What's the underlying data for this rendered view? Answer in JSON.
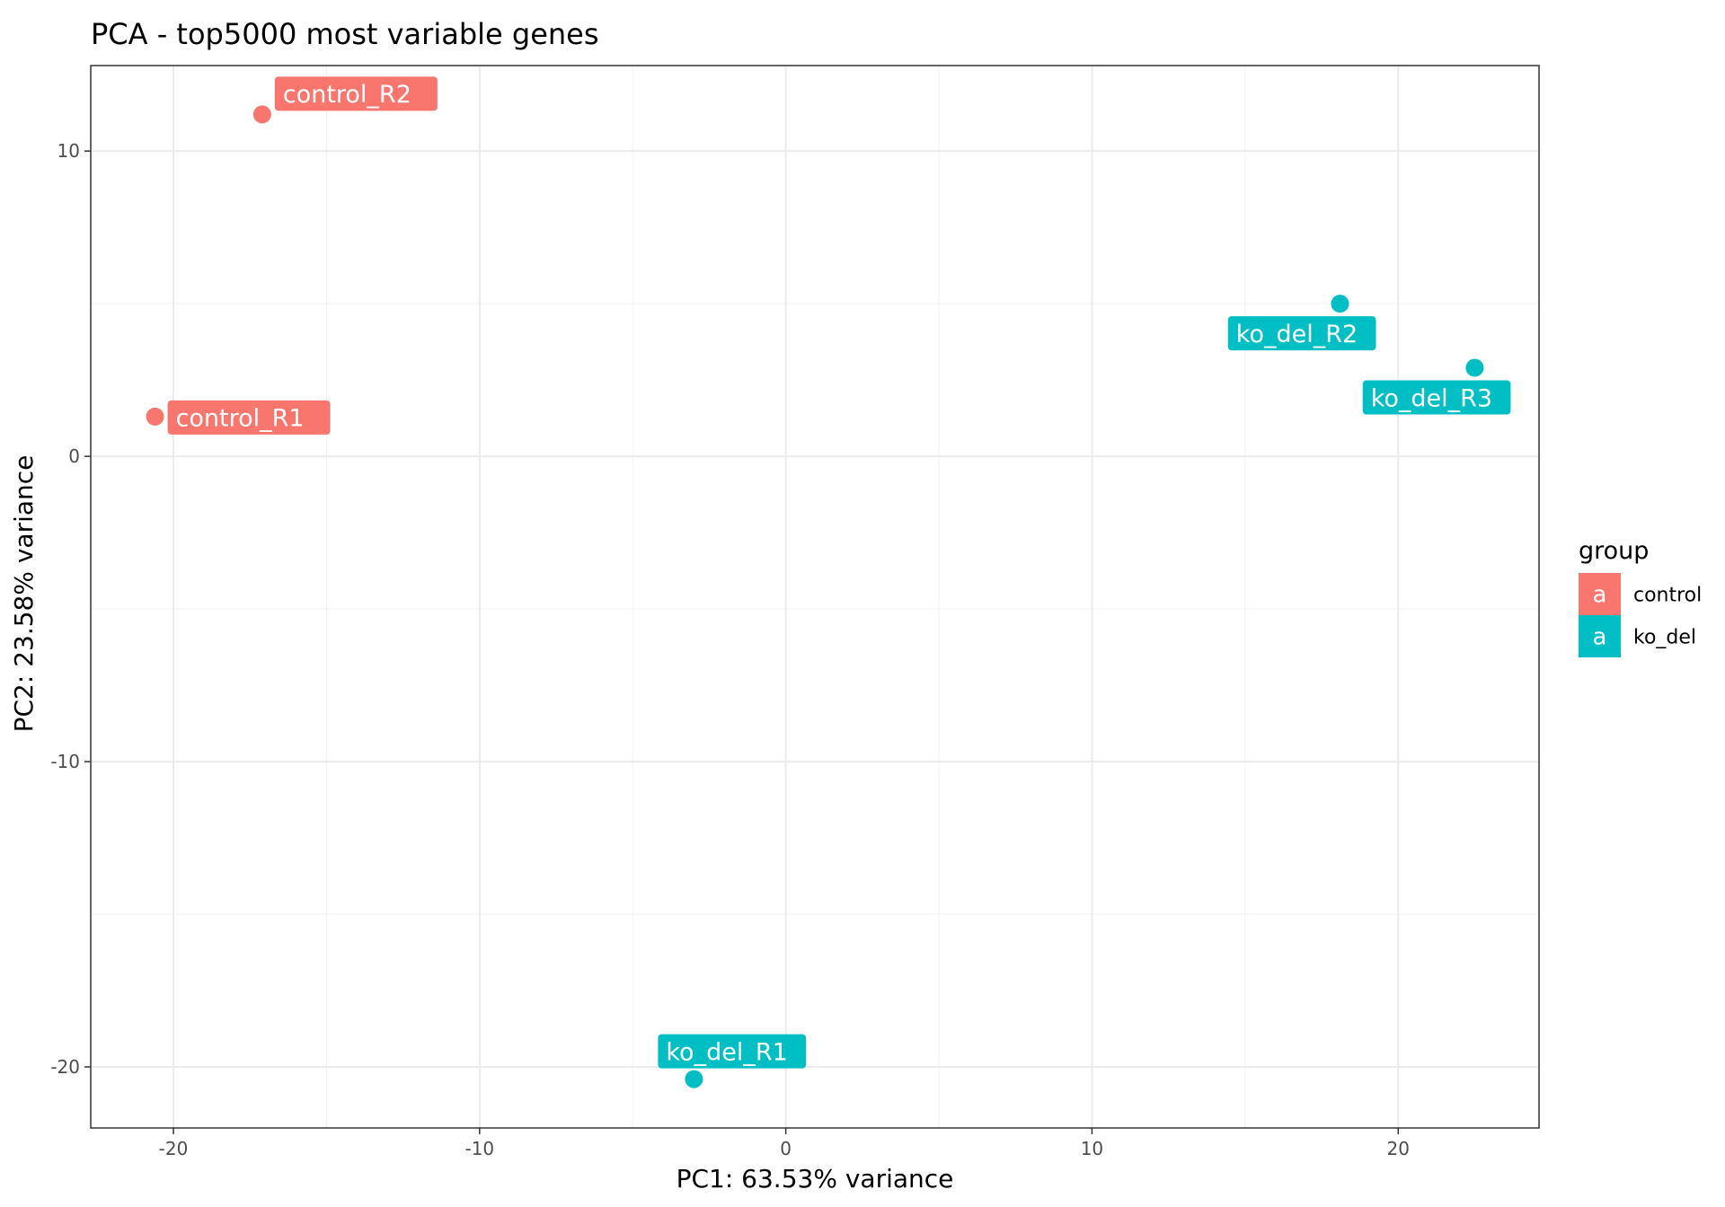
{
  "chart_data": {
    "type": "scatter",
    "title": "PCA - top5000 most variable genes",
    "xlabel": "PC1: 63.53% variance",
    "ylabel": "PC2: 23.58% variance",
    "xlim": [
      -22.7,
      24.6
    ],
    "ylim": [
      -22.0,
      12.8
    ],
    "x_ticks": [
      -20,
      -10,
      0,
      10,
      20
    ],
    "y_ticks": [
      -20,
      -10,
      0,
      10
    ],
    "grid": true,
    "legend": {
      "title": "group",
      "position": "right",
      "key_glyph": "a",
      "entries": [
        {
          "name": "control",
          "color": "#F8766D"
        },
        {
          "name": "ko_del",
          "color": "#00BFC4"
        }
      ]
    },
    "points": [
      {
        "label": "control_R1",
        "group": "control",
        "x": -20.6,
        "y": 1.3,
        "label_side": "right"
      },
      {
        "label": "control_R2",
        "group": "control",
        "x": -17.1,
        "y": 11.2,
        "label_side": "upper-right"
      },
      {
        "label": "ko_del_R1",
        "group": "ko_del",
        "x": -3.0,
        "y": -20.4,
        "label_side": "above"
      },
      {
        "label": "ko_del_R2",
        "group": "ko_del",
        "x": 18.1,
        "y": 5.0,
        "label_side": "below-left"
      },
      {
        "label": "ko_del_R3",
        "group": "ko_del",
        "x": 22.5,
        "y": 2.9,
        "label_side": "below-left"
      }
    ]
  }
}
